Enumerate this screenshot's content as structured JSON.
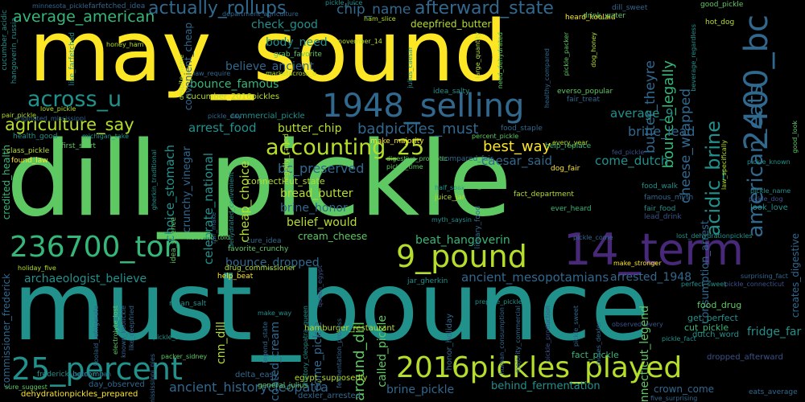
{
  "words": [
    {
      "text": "dill_pickle",
      "color": "#5ec962"
    },
    {
      "text": "must_bounce",
      "color": "#21918c"
    },
    {
      "text": "may_sound",
      "color": "#fde725"
    },
    {
      "text": "14_term",
      "color": "#482878"
    },
    {
      "text": "1948_selling",
      "color": "#31688e"
    },
    {
      "text": "2400_bc",
      "color": "#31688e"
    },
    {
      "text": "236700_ton",
      "color": "#35b779"
    },
    {
      "text": "9_pound",
      "color": "#b5de2b"
    },
    {
      "text": "2016pickles_played",
      "color": "#b5de2b"
    },
    {
      "text": "25_percent",
      "color": "#21918c"
    },
    {
      "text": "american_eats",
      "color": "#31688e"
    },
    {
      "text": "acidic_brine",
      "color": "#21918c"
    },
    {
      "text": "accounting_25",
      "color": "#b5de2b"
    },
    {
      "text": "across_u",
      "color": "#21918c"
    },
    {
      "text": "agriculture_say",
      "color": "#b5de2b"
    },
    {
      "text": "average_american",
      "color": "#35b779"
    },
    {
      "text": "actually_rollups",
      "color": "#31688e"
    },
    {
      "text": "afterward_state",
      "color": "#31688e"
    },
    {
      "text": "chip_name",
      "color": "#31688e"
    },
    {
      "text": "bounce_legally",
      "color": "#35b779"
    },
    {
      "text": "cheese_wrapped",
      "color": "#31688e"
    },
    {
      "text": "butter_theyre",
      "color": "#31688e"
    },
    {
      "text": "arrest_food",
      "color": "#21918c"
    },
    {
      "text": "butter_chip",
      "color": "#b5de2b"
    },
    {
      "text": "badpickles_must",
      "color": "#31688e"
    },
    {
      "text": "best_way",
      "color": "#fde725"
    },
    {
      "text": "brine_lead",
      "color": "#31688e"
    },
    {
      "text": "average_9",
      "color": "#21918c"
    },
    {
      "text": "cheap_choice",
      "color": "#b5de2b"
    },
    {
      "text": "bc_preserved",
      "color": "#31688e"
    },
    {
      "text": "caesar_said",
      "color": "#31688e"
    },
    {
      "text": "come_dutch",
      "color": "#21918c"
    },
    {
      "text": "bread_butter",
      "color": "#b5de2b"
    },
    {
      "text": "brine_honor",
      "color": "#31688e"
    },
    {
      "text": "belief_would",
      "color": "#b5de2b"
    },
    {
      "text": "cream_cheese",
      "color": "#5ec962"
    },
    {
      "text": "beat_hangoverin",
      "color": "#35b779"
    },
    {
      "text": "bounce_dropped",
      "color": "#31688e"
    },
    {
      "text": "ancient_mesopotamians",
      "color": "#31688e"
    },
    {
      "text": "arrested_1948",
      "color": "#31688e"
    },
    {
      "text": "archaeologist_believe",
      "color": "#21918c"
    },
    {
      "text": "ancient_historycleopatra",
      "color": "#31688e"
    },
    {
      "text": "behind_fermentation",
      "color": "#21918c"
    },
    {
      "text": "brine_pickle",
      "color": "#31688e"
    },
    {
      "text": "connecticut_legend",
      "color": "#5ec962"
    },
    {
      "text": "crown_come",
      "color": "#31688e"
    },
    {
      "text": "check_good",
      "color": "#21918c"
    },
    {
      "text": "body_need",
      "color": "#21918c"
    },
    {
      "text": "believe_ancient",
      "color": "#31688e"
    },
    {
      "text": "bounce_famous",
      "color": "#35b779"
    },
    {
      "text": "connecticut_state",
      "color": "#b5de2b"
    },
    {
      "text": "choice_stomach",
      "color": "#21918c"
    },
    {
      "text": "crunchy_vinegar",
      "color": "#31688e"
    },
    {
      "text": "celebrate_national",
      "color": "#21918c"
    },
    {
      "text": "cnn_dill",
      "color": "#b5de2b"
    },
    {
      "text": "coated_cream",
      "color": "#31688e"
    },
    {
      "text": "around_dill",
      "color": "#5ec962"
    },
    {
      "text": "come_pickle",
      "color": "#31688e"
    },
    {
      "text": "called_pickle",
      "color": "#5ec962"
    },
    {
      "text": "consumption_arrest",
      "color": "#31688e"
    },
    {
      "text": "convenient_cheap",
      "color": "#31688e"
    },
    {
      "text": "credited_health",
      "color": "#35b779"
    },
    {
      "text": "commissioner_frederick",
      "color": "#31688e"
    },
    {
      "text": "creates_digestive",
      "color": "#31688e"
    },
    {
      "text": "deepfried_butter",
      "color": "#b5de2b"
    },
    {
      "text": "cucumber_2016pickles",
      "color": "#b5de2b"
    },
    {
      "text": "commercial_pickle",
      "color": "#21918c"
    },
    {
      "text": "dehydrationpickles_prepared",
      "color": "#fde725"
    },
    {
      "text": "day_observed",
      "color": "#31688e"
    },
    {
      "text": "delta_easy",
      "color": "#31688e"
    },
    {
      "text": "dexler_arrested",
      "color": "#31688e"
    },
    {
      "text": "egypt_supposedly",
      "color": "#b5de2b"
    },
    {
      "text": "hamburger_restaurant",
      "color": "#b5de2b"
    },
    {
      "text": "fridge_far",
      "color": "#21918c"
    },
    {
      "text": "food_drug",
      "color": "#5ec962"
    },
    {
      "text": "get_perfect",
      "color": "#21918c"
    },
    {
      "text": "cut_pickle",
      "color": "#35b779"
    },
    {
      "text": "dutch_word",
      "color": "#21918c"
    },
    {
      "text": "fact_pickle",
      "color": "#35b779"
    },
    {
      "text": "dropped_afterward",
      "color": "#3b528b"
    },
    {
      "text": "honor_holiday",
      "color": "#31688e"
    },
    {
      "text": "look_love",
      "color": "#21918c"
    },
    {
      "text": "fact_department",
      "color": "#b5de2b"
    },
    {
      "text": "ever_heard",
      "color": "#35b779"
    },
    {
      "text": "famous_myth",
      "color": "#31688e"
    },
    {
      "text": "fair_food",
      "color": "#21918c"
    },
    {
      "text": "food_walk",
      "color": "#21918c"
    },
    {
      "text": "lead_drink",
      "color": "#3b528b"
    },
    {
      "text": "help_replace",
      "color": "#35b779"
    },
    {
      "text": "compared_fair",
      "color": "#31688e"
    },
    {
      "text": "dog_fair",
      "color": "#fde725"
    },
    {
      "text": "juice_jar",
      "color": "#b5de2b"
    },
    {
      "text": "fair_treat",
      "color": "#31688e"
    },
    {
      "text": "food_staple",
      "color": "#31688e"
    },
    {
      "text": "idea_salty",
      "color": "#21918c"
    },
    {
      "text": "everso_popular",
      "color": "#5ec962"
    },
    {
      "text": "grab_favorite",
      "color": "#5ec962"
    },
    {
      "text": "heard_koolaid",
      "color": "#fde725"
    },
    {
      "text": "drink_water",
      "color": "#5ec962"
    },
    {
      "text": "dill_sweet",
      "color": "#31688e"
    },
    {
      "text": "farfetched_idea",
      "color": "#31688e"
    },
    {
      "text": "good_pickle",
      "color": "#5ec962"
    },
    {
      "text": "hot_dog",
      "color": "#b5de2b"
    },
    {
      "text": "holcomb_told",
      "color": "#5ec962"
    },
    {
      "text": "favorite_crunchy",
      "color": "#5ec962"
    },
    {
      "text": "drug_commissioner",
      "color": "#b5de2b"
    },
    {
      "text": "cure_idea",
      "color": "#31688e"
    },
    {
      "text": "help_beat",
      "color": "#fde725"
    },
    {
      "text": "holiday_five",
      "color": "#b5de2b"
    },
    {
      "text": "jar_gherkin",
      "color": "#21918c"
    },
    {
      "text": "make_stronger",
      "color": "#fde725"
    },
    {
      "text": "lost_dehydrationpickles",
      "color": "#21918c"
    },
    {
      "text": "first_start",
      "color": "#5ec962"
    },
    {
      "text": "found_law",
      "color": "#fde725"
    },
    {
      "text": "class_pickle",
      "color": "#b5de2b"
    },
    {
      "text": "health_good",
      "color": "#21918c"
    },
    {
      "text": "pair_pickle",
      "color": "#b5de2b"
    },
    {
      "text": "love_pickle",
      "color": "#b5de2b"
    },
    {
      "text": "cucumber_acidic",
      "color": "#21918c"
    },
    {
      "text": "hangoverin_russia",
      "color": "#21918c"
    },
    {
      "text": "honey_ham",
      "color": "#b5de2b"
    },
    {
      "text": "like_farfetched",
      "color": "#21918c"
    },
    {
      "text": "fair_make",
      "color": "#31688e"
    },
    {
      "text": "idea_science",
      "color": "#5ec962"
    },
    {
      "text": "legally_called",
      "color": "#b5de2b"
    },
    {
      "text": "make_majority",
      "color": "#fde725"
    },
    {
      "text": "mean_salt",
      "color": "#21918c"
    },
    {
      "text": "every_year",
      "color": "#b5de2b"
    },
    {
      "text": "myth_saysin",
      "color": "#21918c"
    },
    {
      "text": "library_food",
      "color": "#31688e"
    },
    {
      "text": "packer_sidney",
      "color": "#5ec962"
    },
    {
      "text": "general_julius",
      "color": "#5ec962"
    },
    {
      "text": "pickle_sale",
      "color": "#21918c"
    },
    {
      "text": "frederick_holcomb",
      "color": "#21918c"
    },
    {
      "text": "electrolyte_lost",
      "color": "#5ec962"
    },
    {
      "text": "koolaid_refrigerate",
      "color": "#31688e"
    },
    {
      "text": "pekel_mean",
      "color": "#31688e"
    },
    {
      "text": "sure_suggest",
      "color": "#5ec962"
    },
    {
      "text": "eats_average",
      "color": "#31688e"
    },
    {
      "text": "five_surprising",
      "color": "#31688e"
    },
    {
      "text": "half_soak",
      "color": "#21918c"
    },
    {
      "text": "moses_dexler",
      "color": "#31688e"
    },
    {
      "text": "law_specifically",
      "color": "#b5de2b"
    },
    {
      "text": "pickle_known",
      "color": "#21918c"
    },
    {
      "text": "november_14",
      "color": "#b5de2b"
    },
    {
      "text": "despite_name",
      "color": "#b5de2b"
    },
    {
      "text": "law_require",
      "color": "#31688e"
    },
    {
      "text": "marketacross_u",
      "color": "#b5de2b"
    },
    {
      "text": "pickle_day",
      "color": "#31688e"
    },
    {
      "text": "digestive_probiotic",
      "color": "#5ec962"
    },
    {
      "text": "michigan_take",
      "color": "#21918c"
    },
    {
      "text": "fed_pickle",
      "color": "#3b528b"
    },
    {
      "text": "pickle_dog",
      "color": "#3b528b"
    },
    {
      "text": "good_look",
      "color": "#5ec962"
    },
    {
      "text": "healthy_compared",
      "color": "#31688e"
    },
    {
      "text": "ham_slice",
      "color": "#b5de2b"
    },
    {
      "text": "pickle_juice",
      "color": "#21918c"
    },
    {
      "text": "large_quantity",
      "color": "#b5de2b"
    },
    {
      "text": "julius_caesar",
      "color": "#21918c"
    },
    {
      "text": "need_dehydrated",
      "color": "#5ec962"
    },
    {
      "text": "minnesota_pickle",
      "color": "#31688e"
    },
    {
      "text": "department_agriculture",
      "color": "#31688e"
    },
    {
      "text": "pickle_packer",
      "color": "#5ec962"
    },
    {
      "text": "dog_honey",
      "color": "#b5de2b"
    },
    {
      "text": "beverage_regardless",
      "color": "#21918c"
    },
    {
      "text": "pickle_half",
      "color": "#5ec962"
    },
    {
      "text": "pickle_time",
      "color": "#5ec962"
    },
    {
      "text": "pickle_name",
      "color": "#21918c"
    },
    {
      "text": "originated_mississippi",
      "color": "#31688e"
    },
    {
      "text": "percent_pickle",
      "color": "#5ec962"
    },
    {
      "text": "pickle_production",
      "color": "#3b528b"
    },
    {
      "text": "pickle_connecticut",
      "color": "#3b528b"
    },
    {
      "text": "pickle_come",
      "color": "#31688e"
    },
    {
      "text": "perfect_sweet",
      "color": "#21918c"
    },
    {
      "text": "pickle_fact",
      "color": "#21918c"
    },
    {
      "text": "human_consumption",
      "color": "#31688e"
    },
    {
      "text": "legend_state",
      "color": "#31688e"
    },
    {
      "text": "history_cleopatra_queen",
      "color": "#21918c"
    },
    {
      "text": "fermentation_process",
      "color": "#31688e"
    },
    {
      "text": "mississippi_pies",
      "color": "#31688e"
    },
    {
      "text": "make_way",
      "color": "#21918c"
    },
    {
      "text": "known_koolickle",
      "color": "#31688e"
    },
    {
      "text": "prepare_pickle",
      "color": "#21918c"
    },
    {
      "text": "majority_commercial",
      "color": "#31688e"
    },
    {
      "text": "pickle_sweet",
      "color": "#31688e"
    },
    {
      "text": "dehydrated_convenient",
      "color": "#21918c"
    },
    {
      "text": "gherkin_traditional",
      "color": "#21918c"
    },
    {
      "text": "like_deepfried",
      "color": "#31688e"
    },
    {
      "text": "surprising_fact",
      "color": "#31688e"
    },
    {
      "text": "observed_every",
      "color": "#3b528b"
    },
    {
      "text": "queen_egypt",
      "color": "#3b528b"
    }
  ]
}
